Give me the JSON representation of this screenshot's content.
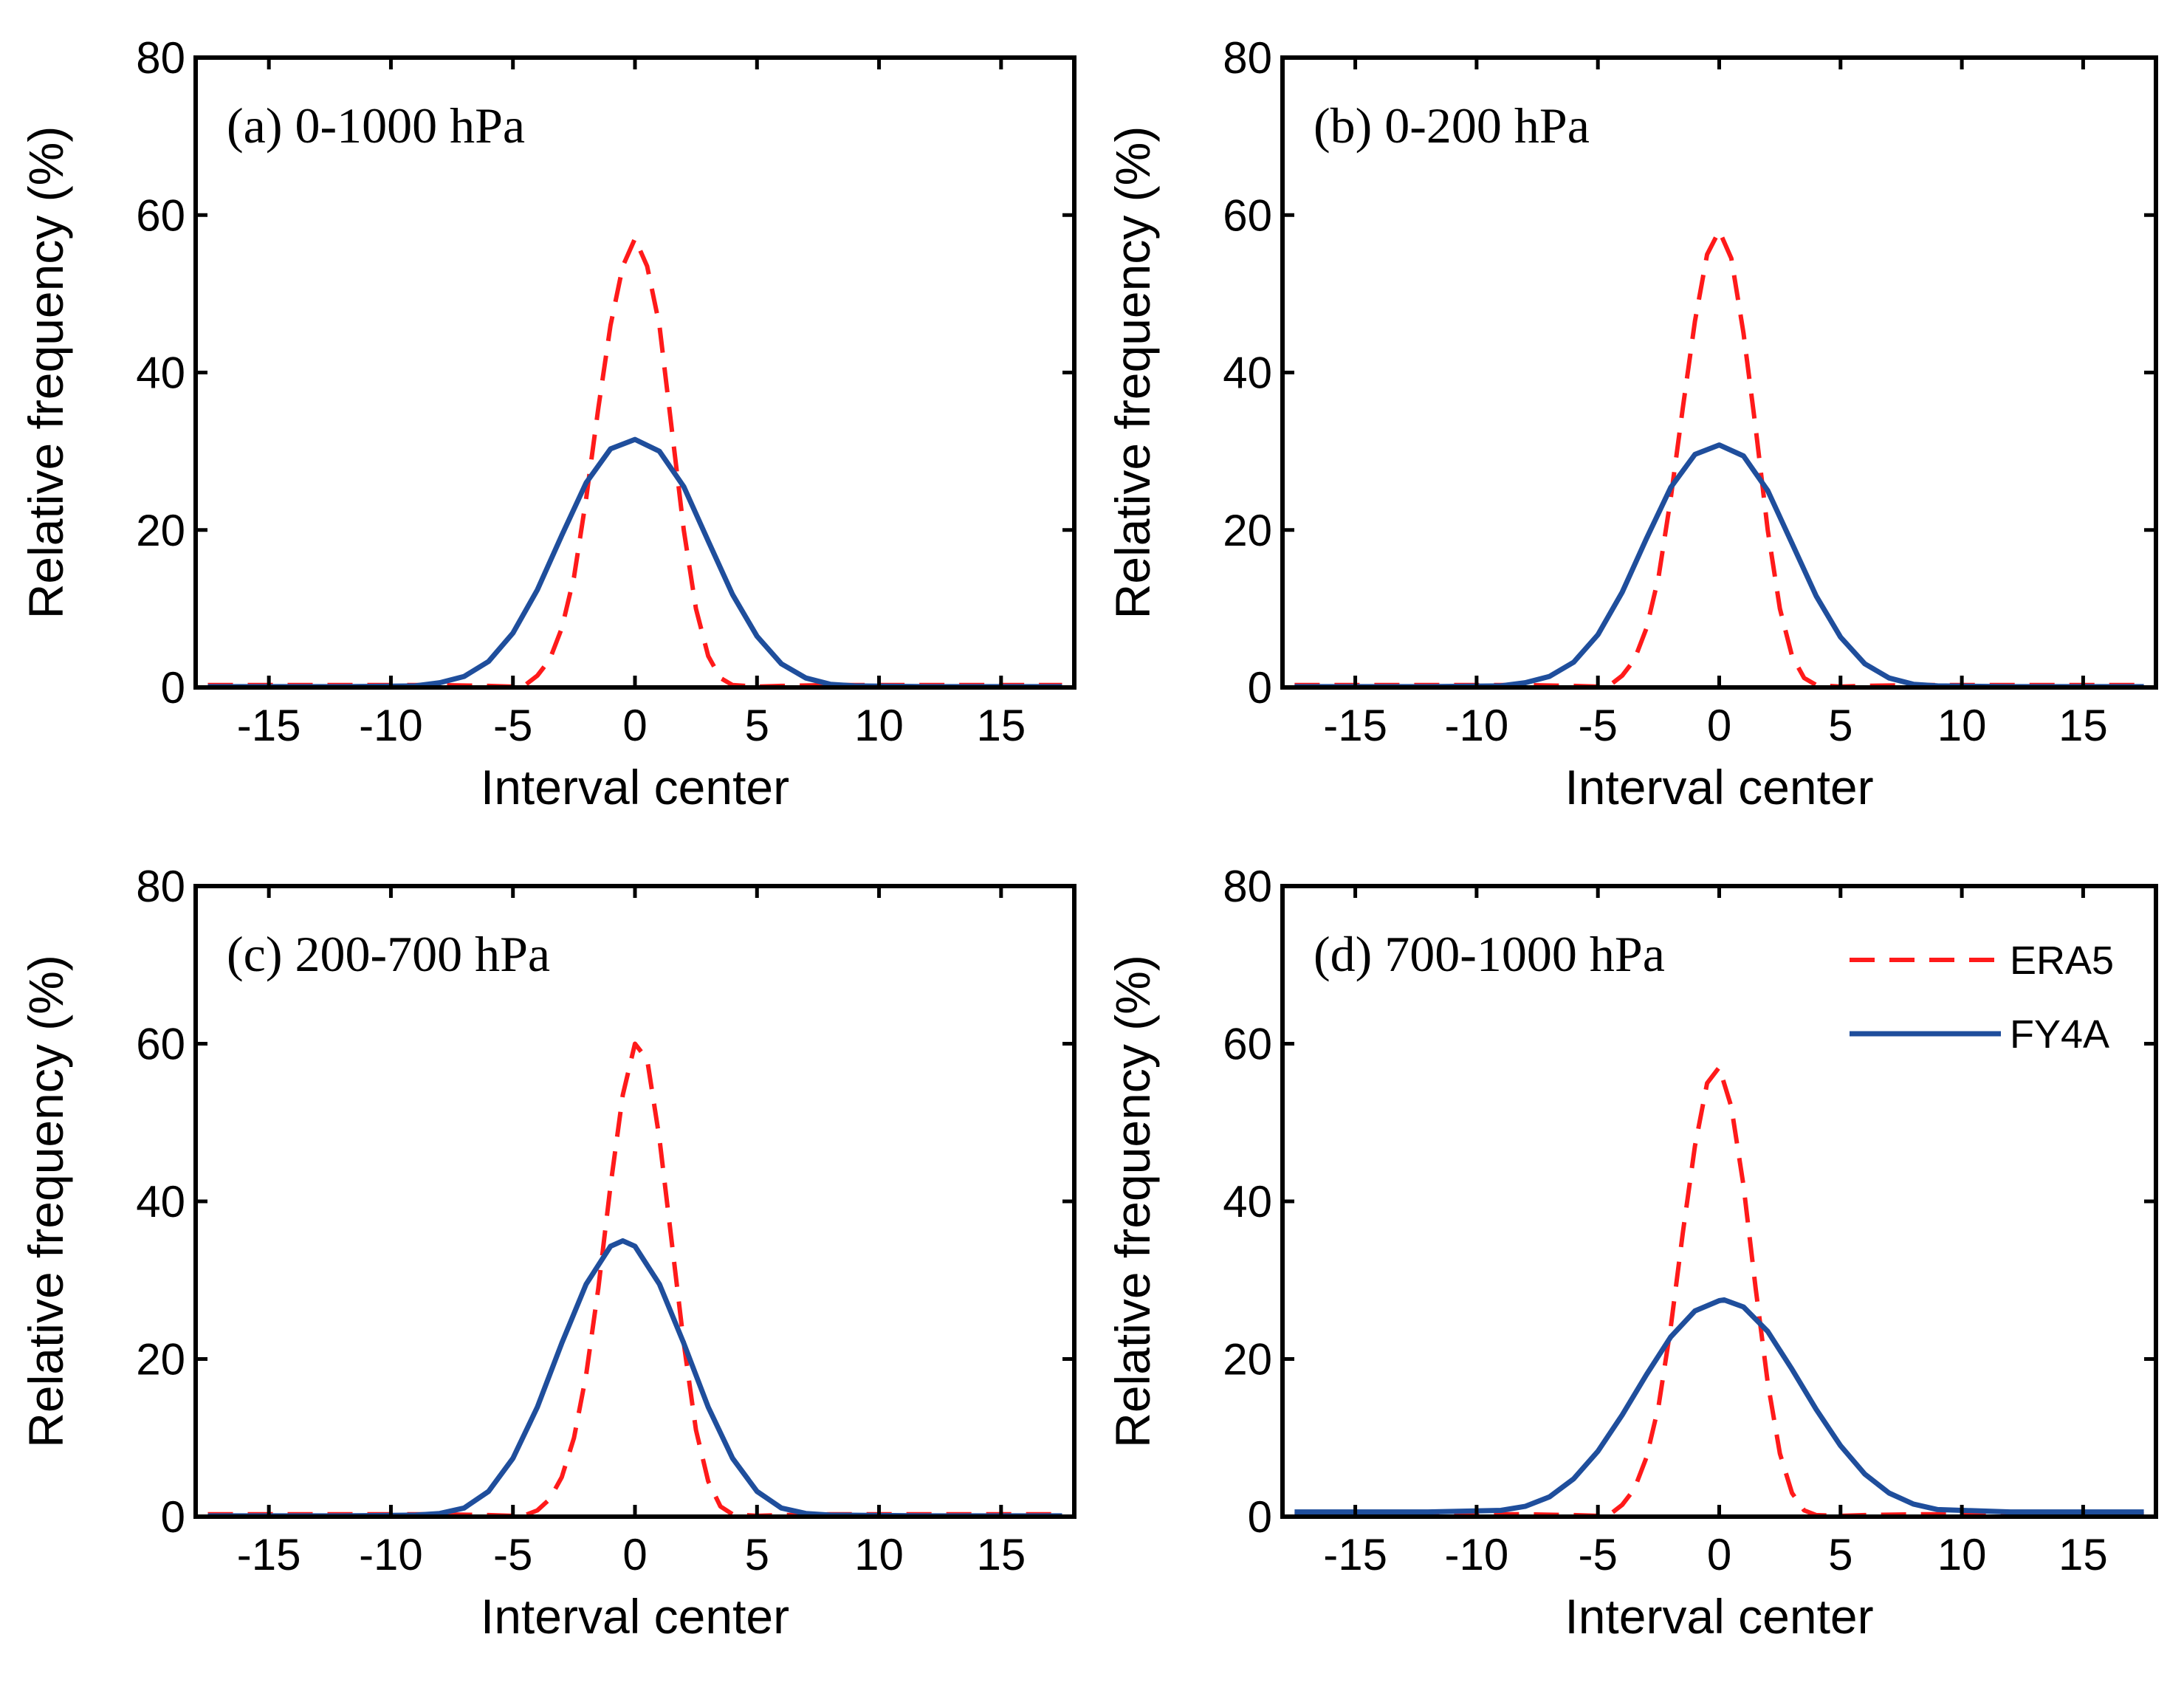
{
  "chart_data": [
    {
      "type": "line",
      "title": "(a) 0-1000 hPa",
      "xlabel": "Interval center",
      "ylabel": "Relative frequency (%)",
      "xlim": [
        -18,
        18
      ],
      "ylim": [
        0,
        80
      ],
      "xticks": [
        -15,
        -10,
        -5,
        0,
        5,
        10,
        15
      ],
      "xtick_labels": [
        "-15",
        "-10",
        "-5",
        "0",
        "5",
        "10",
        "15"
      ],
      "yticks": [
        0,
        20,
        40,
        60,
        80
      ],
      "ytick_labels": [
        "0",
        "20",
        "40",
        "60",
        "80"
      ],
      "series": [
        {
          "name": "ERA5",
          "style": "dashed",
          "color": "#ff1a1a",
          "x": [
            -17.5,
            -12,
            -8,
            -6,
            -5,
            -4.5,
            -4,
            -3.5,
            -3,
            -2.5,
            -2,
            -1.5,
            -1,
            -0.5,
            0,
            0.5,
            1,
            1.5,
            2,
            2.5,
            3,
            3.5,
            4,
            5,
            6,
            8,
            12,
            17.5
          ],
          "y": [
            0.3,
            0.3,
            0.3,
            0.2,
            0.1,
            0.3,
            1.5,
            3.5,
            7.5,
            14,
            24,
            35.5,
            46,
            53.5,
            57,
            53.5,
            46,
            33,
            20,
            10,
            4,
            1.2,
            0.3,
            0.1,
            0.2,
            0.3,
            0.3,
            0.3
          ]
        },
        {
          "name": "FY4A",
          "style": "solid",
          "color": "#1f4e9c",
          "x": [
            -17.5,
            -12,
            -9,
            -8,
            -7,
            -6,
            -5,
            -4,
            -3,
            -2,
            -1,
            0,
            1,
            2,
            3,
            4,
            5,
            6,
            7,
            8,
            9,
            12,
            17.5
          ],
          "y": [
            0.1,
            0.1,
            0.2,
            0.6,
            1.4,
            3.3,
            6.9,
            12.4,
            19.3,
            26.0,
            30.3,
            31.5,
            30.0,
            25.5,
            18.6,
            11.8,
            6.5,
            3.0,
            1.2,
            0.4,
            0.2,
            0.1,
            0.1
          ]
        }
      ]
    },
    {
      "type": "line",
      "title": "(b) 0-200 hPa",
      "xlabel": "Interval center",
      "ylabel": "Relative frequency (%)",
      "xlim": [
        -18,
        18
      ],
      "ylim": [
        0,
        80
      ],
      "xticks": [
        -15,
        -10,
        -5,
        0,
        5,
        10,
        15
      ],
      "xtick_labels": [
        "-15",
        "-10",
        "-5",
        "0",
        "5",
        "10",
        "15"
      ],
      "yticks": [
        0,
        20,
        40,
        60,
        80
      ],
      "ytick_labels": [
        "0",
        "20",
        "40",
        "60",
        "80"
      ],
      "series": [
        {
          "name": "ERA5",
          "style": "dashed",
          "color": "#ff1a1a",
          "x": [
            -17.5,
            -12,
            -8,
            -6,
            -5,
            -4.5,
            -4,
            -3.5,
            -3,
            -2.5,
            -2,
            -1.5,
            -1,
            -0.5,
            0,
            0.5,
            1,
            1.5,
            2,
            2.5,
            3,
            3.5,
            4,
            5,
            6,
            8,
            12,
            17.5
          ],
          "y": [
            0.3,
            0.3,
            0.3,
            0.2,
            0.1,
            0.3,
            1.5,
            3.5,
            7.5,
            14,
            24,
            35.5,
            46.5,
            55,
            58,
            54.5,
            45,
            33,
            20,
            10,
            4,
            1.2,
            0.3,
            0.1,
            0.2,
            0.3,
            0.3,
            0.3
          ]
        },
        {
          "name": "FY4A",
          "style": "solid",
          "color": "#1f4e9c",
          "x": [
            -17.5,
            -12,
            -9,
            -8,
            -7,
            -6,
            -5,
            -4,
            -3,
            -2,
            -1,
            0,
            1,
            2,
            3,
            4,
            5,
            6,
            7,
            8,
            9,
            12,
            17.5
          ],
          "y": [
            0.1,
            0.1,
            0.2,
            0.6,
            1.4,
            3.2,
            6.7,
            12.1,
            18.9,
            25.4,
            29.6,
            30.8,
            29.4,
            25.0,
            18.3,
            11.6,
            6.4,
            3.0,
            1.2,
            0.4,
            0.2,
            0.1,
            0.1
          ]
        }
      ]
    },
    {
      "type": "line",
      "title": "(c) 200-700 hPa",
      "xlabel": "Interval center",
      "ylabel": "Relative frequency (%)",
      "xlim": [
        -18,
        18
      ],
      "ylim": [
        0,
        80
      ],
      "xticks": [
        -15,
        -10,
        -5,
        0,
        5,
        10,
        15
      ],
      "xtick_labels": [
        "-15",
        "-10",
        "-5",
        "0",
        "5",
        "10",
        "15"
      ],
      "yticks": [
        0,
        20,
        40,
        60,
        80
      ],
      "ytick_labels": [
        "0",
        "20",
        "40",
        "60",
        "80"
      ],
      "series": [
        {
          "name": "ERA5",
          "style": "dashed",
          "color": "#ff1a1a",
          "x": [
            -17.5,
            -12,
            -8,
            -6,
            -5,
            -4.5,
            -4,
            -3.5,
            -3,
            -2.5,
            -2,
            -1.5,
            -1,
            -0.5,
            0,
            0.5,
            1,
            1.5,
            2,
            2.5,
            3,
            3.5,
            4,
            5,
            6,
            8,
            12,
            17.5
          ],
          "y": [
            0.3,
            0.3,
            0.3,
            0.2,
            0.1,
            0.2,
            0.8,
            2.2,
            5,
            10,
            18,
            29,
            42,
            53.5,
            60,
            58,
            48,
            35,
            22,
            11,
            4.5,
            1.3,
            0.3,
            0.1,
            0.2,
            0.3,
            0.3,
            0.3
          ]
        },
        {
          "name": "FY4A",
          "style": "solid",
          "color": "#1f4e9c",
          "x": [
            -17.5,
            -12,
            -9,
            -8,
            -7,
            -6,
            -5,
            -4,
            -3,
            -2,
            -1,
            -0.5,
            0,
            1,
            2,
            3,
            4,
            5,
            6,
            7,
            8,
            12,
            17.5
          ],
          "y": [
            0.1,
            0.1,
            0.2,
            0.4,
            1.1,
            3.2,
            7.4,
            13.9,
            22.0,
            29.5,
            34.3,
            35.0,
            34.3,
            29.5,
            22.0,
            13.9,
            7.4,
            3.2,
            1.1,
            0.4,
            0.2,
            0.1,
            0.1
          ]
        }
      ]
    },
    {
      "type": "line",
      "title": "(d) 700-1000 hPa",
      "xlabel": "Interval center",
      "ylabel": "Relative frequency (%)",
      "xlim": [
        -18,
        18
      ],
      "ylim": [
        0,
        80
      ],
      "xticks": [
        -15,
        -10,
        -5,
        0,
        5,
        10,
        15
      ],
      "xtick_labels": [
        "-15",
        "-10",
        "-5",
        "0",
        "5",
        "10",
        "15"
      ],
      "yticks": [
        0,
        20,
        40,
        60,
        80
      ],
      "ytick_labels": [
        "0",
        "20",
        "40",
        "60",
        "80"
      ],
      "legend": {
        "position": "top-right",
        "entries": [
          "ERA5",
          "FY4A"
        ]
      },
      "series": [
        {
          "name": "ERA5",
          "style": "dashed",
          "color": "#ff1a1a",
          "x": [
            -17.5,
            -12,
            -8,
            -6,
            -5,
            -4.5,
            -4,
            -3.5,
            -3,
            -2.5,
            -2,
            -1.5,
            -1,
            -0.5,
            0,
            0.5,
            1,
            1.5,
            2,
            2.5,
            3,
            3.5,
            4,
            5,
            6,
            8,
            12,
            17.5
          ],
          "y": [
            0.3,
            0.3,
            0.3,
            0.2,
            0.1,
            0.3,
            1.5,
            3.5,
            7.5,
            14,
            24,
            36,
            47,
            55,
            57,
            52,
            42,
            29,
            17,
            8,
            3,
            0.8,
            0.2,
            0.1,
            0.2,
            0.3,
            0.3,
            0.3
          ]
        },
        {
          "name": "FY4A",
          "style": "solid",
          "color": "#1f4e9c",
          "x": [
            -17.5,
            -12,
            -9,
            -8,
            -7,
            -6,
            -5,
            -4,
            -3,
            -2,
            -1,
            0,
            0.2,
            1,
            2,
            3,
            4,
            5,
            6,
            7,
            8,
            9,
            12,
            17.5
          ],
          "y": [
            0.6,
            0.6,
            0.8,
            1.3,
            2.5,
            4.8,
            8.3,
            12.9,
            18.0,
            22.8,
            26.1,
            27.4,
            27.5,
            26.6,
            23.5,
            18.7,
            13.6,
            9.0,
            5.4,
            3.0,
            1.6,
            0.9,
            0.6,
            0.6
          ]
        }
      ]
    }
  ]
}
